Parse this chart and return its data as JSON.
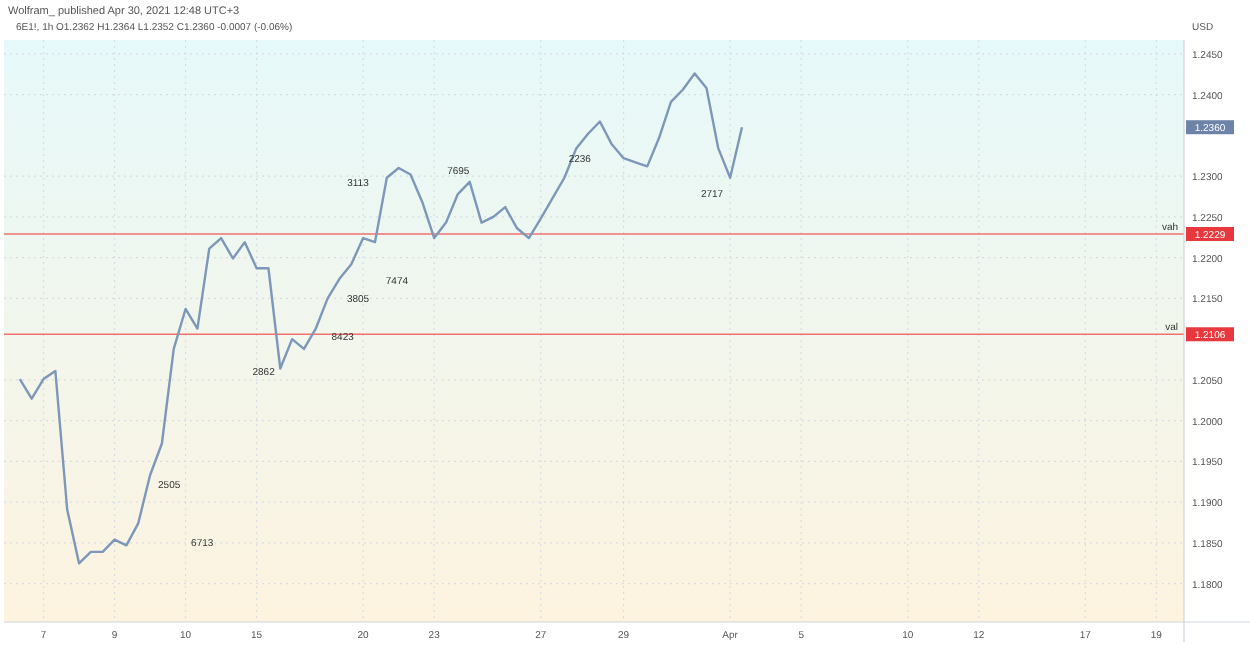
{
  "chart_data": {
    "type": "line",
    "title": "Wolfram_ published Apr 30, 2021 12:48 UTC+3",
    "subtitle": "6E1!, 1h O1.2362 H1.2364 L1.2352 C1.2360 -0.0007 (-0.06%)",
    "ylabel": "USD",
    "categories": [
      null,
      null,
      null,
      "7",
      null,
      null,
      null,
      null,
      null,
      "9",
      null,
      null,
      null,
      null,
      null,
      "10",
      null,
      null,
      null,
      null,
      null,
      "15",
      null,
      null,
      null,
      null,
      null,
      null,
      null,
      null,
      "20",
      null,
      null,
      null,
      null,
      null,
      "23",
      null,
      null,
      null,
      null,
      null,
      null,
      null,
      null,
      "27",
      null,
      null,
      null,
      null,
      null,
      null,
      "29",
      null,
      null,
      null,
      null,
      null,
      null,
      null,
      null,
      "Apr",
      null,
      null,
      null,
      null,
      null,
      "5",
      null,
      null,
      null,
      null,
      null,
      null,
      null,
      null,
      "10",
      null,
      null,
      null,
      null,
      null,
      "12",
      null,
      null,
      null,
      null,
      null,
      null,
      null,
      null,
      "17",
      null,
      null,
      null,
      null,
      null,
      "19",
      null,
      null
    ],
    "series": [
      {
        "color": "#7d97b8",
        "values": [
          null,
          1.2051,
          1.2027,
          1.2051,
          1.2061,
          1.1891,
          1.1825,
          1.1839,
          1.1839,
          1.1854,
          1.1847,
          1.1874,
          1.1933,
          1.1972,
          1.2088,
          1.2137,
          1.2113,
          1.2211,
          1.2224,
          1.2199,
          1.2219,
          1.2187,
          1.2187,
          1.2064,
          1.21,
          1.2088,
          1.2113,
          1.215,
          1.2174,
          1.2192,
          1.2224,
          1.2219,
          1.2298,
          1.231,
          1.2302,
          1.2268,
          1.2224,
          1.2243,
          1.2278,
          1.2293,
          1.2243,
          1.225,
          1.2262,
          1.2236,
          1.2224,
          1.2248,
          1.2273,
          1.2298,
          1.2334,
          1.2352,
          1.2367,
          1.2339,
          1.2322,
          1.2317,
          1.2312,
          1.2347,
          1.2391,
          1.2406,
          1.2426,
          1.2408,
          1.2334,
          1.2298,
          1.236,
          null,
          null,
          null,
          null,
          null,
          null,
          null,
          null,
          null,
          null,
          null,
          null,
          null,
          null,
          null,
          null,
          null,
          null,
          null,
          null,
          null,
          null,
          null,
          null,
          null,
          null,
          null,
          null,
          null,
          null,
          null,
          null,
          null,
          null,
          null,
          null,
          null
        ]
      }
    ],
    "ylim": [
      1.1753,
      1.2467
    ],
    "yticks": [
      {
        "value": 1.18,
        "label": "1.1800"
      },
      {
        "value": 1.185,
        "label": "1.1850"
      },
      {
        "value": 1.19,
        "label": "1.1900"
      },
      {
        "value": 1.195,
        "label": "1.1950"
      },
      {
        "value": 1.2,
        "label": "1.2000"
      },
      {
        "value": 1.205,
        "label": "1.2050"
      },
      {
        "value": 1.215,
        "label": "1.2150"
      },
      {
        "value": 1.22,
        "label": "1.2200"
      },
      {
        "value": 1.225,
        "label": "1.2250"
      },
      {
        "value": 1.23,
        "label": "1.2300"
      },
      {
        "value": 1.24,
        "label": "1.2400"
      },
      {
        "value": 1.245,
        "label": "1.2450"
      }
    ],
    "grid": true,
    "line_style": "solid",
    "ref_lines": [
      {
        "axis": "y",
        "value": 1.2229,
        "label": "vah",
        "color": "#f07070"
      },
      {
        "axis": "y",
        "value": 1.2106,
        "label": "val",
        "color": "#f07070"
      }
    ],
    "annotations": [
      "6713",
      "2505",
      "2862",
      "8423",
      "3805",
      "7474",
      "3113",
      "7695",
      "2236",
      "2717",
      "1.2360",
      "1.2229",
      "1.2106"
    ]
  }
}
